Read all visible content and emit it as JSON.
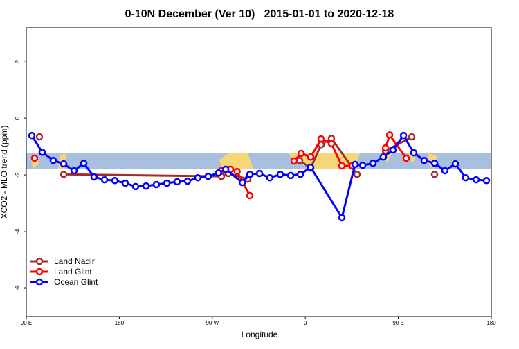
{
  "chart_data": {
    "type": "line",
    "title": "0-10N December (Ver 10)   2015-01-01 to 2020-12-18",
    "x_label": "Longitude",
    "y_label": "XCO2 - MLO trend (ppm)",
    "xlim": [
      90,
      540
    ],
    "xticks": [
      {
        "value": 90,
        "label": "90 E"
      },
      {
        "value": 180,
        "label": "180"
      },
      {
        "value": 270,
        "label": "90 W"
      },
      {
        "value": 360,
        "label": "0"
      },
      {
        "value": 450,
        "label": "90 E"
      },
      {
        "value": 540,
        "label": "180"
      }
    ],
    "ylim": [
      -7,
      3.2
    ],
    "yticks": [
      -6,
      -4,
      -2,
      0,
      2
    ],
    "legend": "bottom-left",
    "series": [
      {
        "name": "Land Nadir",
        "color": "#a52a2a",
        "x": [
          102.7,
          126.2,
          126.2,
          278.8,
          285.5,
          304.3,
          304.3,
          354.5,
          365.2,
          375.3,
          385.3,
          410.1,
          410.1,
          437.6,
          463,
          463,
          485.1
        ],
        "values": [
          -0.66,
          null,
          -1.98,
          -2.05,
          -1.95,
          -2.15,
          null,
          -1.49,
          -1.76,
          -0.93,
          -0.71,
          -1.98,
          null,
          -1.15,
          -0.66,
          null,
          -1.98
        ]
      },
      {
        "name": "Land Glint",
        "color": "#ff0000",
        "x": [
          98,
          98,
          278.8,
          287.5,
          294,
          306.3,
          306.3,
          349.2,
          355.9,
          365.2,
          375.3,
          385.3,
          395.4,
          405.4,
          405.4,
          437.6,
          441.6,
          457.6
        ],
        "values": [
          -1.41,
          null,
          -1.85,
          -1.8,
          -1.88,
          -2.73,
          null,
          -1.51,
          -1.24,
          -1.37,
          -0.73,
          -0.9,
          -1.68,
          -1.68,
          null,
          -1.05,
          -0.59,
          -1.41
        ]
      },
      {
        "name": "Ocean Glint",
        "color": "#0000ff",
        "x": [
          95.4,
          105.4,
          116.1,
          126.2,
          136.2,
          145.6,
          155.6,
          165.7,
          175.7,
          185.8,
          195.8,
          205.9,
          215.9,
          226,
          236,
          246,
          256,
          266,
          276,
          283,
          299,
          306.3,
          315.7,
          325.7,
          335.8,
          345.8,
          355.2,
          365.2,
          395.4,
          408.1,
          415.5,
          425.5,
          435.5,
          444.9,
          455,
          465,
          475,
          485.1,
          495.1,
          505.2,
          515.2,
          525.3,
          535.3
        ],
        "values": [
          -0.61,
          -1.2,
          -1.49,
          -1.61,
          -1.85,
          -1.59,
          -2.07,
          -2.17,
          -2.2,
          -2.29,
          -2.41,
          -2.39,
          -2.34,
          -2.29,
          -2.24,
          -2.22,
          -2.1,
          -2.05,
          -1.93,
          -1.8,
          -2.27,
          -1.98,
          -1.95,
          -2.1,
          -1.98,
          -2.02,
          -1.98,
          -1.73,
          -3.51,
          -1.63,
          -1.66,
          -1.59,
          -1.37,
          -1.12,
          -0.61,
          -1.22,
          -1.49,
          -1.59,
          -1.85,
          -1.61,
          -2.1,
          -2.17,
          -2.2
        ]
      }
    ]
  }
}
